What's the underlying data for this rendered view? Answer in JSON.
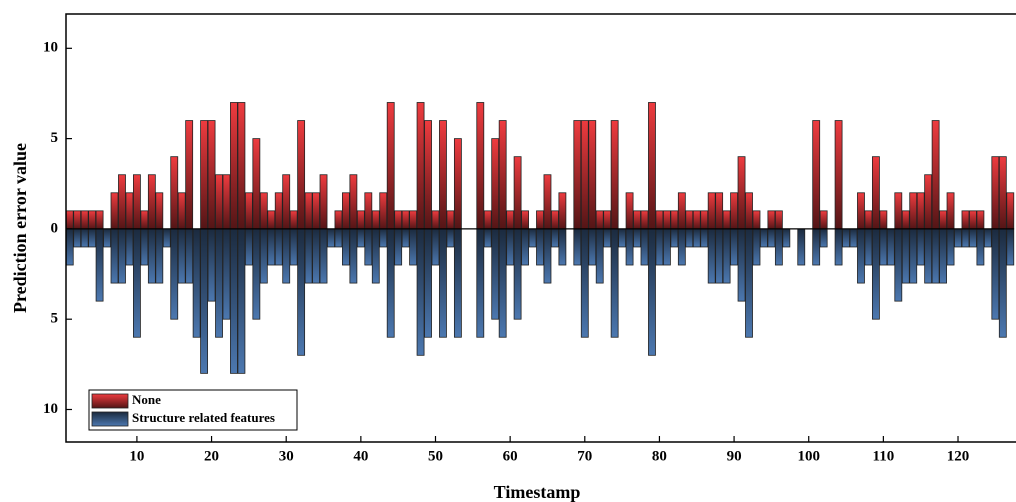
{
  "chart_data": {
    "type": "bar",
    "x_label": "Timestamp",
    "y_label": "Prediction error value",
    "x": [
      1,
      2,
      3,
      4,
      5,
      6,
      7,
      8,
      9,
      10,
      11,
      12,
      13,
      14,
      15,
      16,
      17,
      18,
      19,
      20,
      21,
      22,
      23,
      24,
      25,
      26,
      27,
      28,
      29,
      30,
      31,
      32,
      33,
      34,
      35,
      36,
      37,
      38,
      39,
      40,
      41,
      42,
      43,
      44,
      45,
      46,
      47,
      48,
      49,
      50,
      51,
      52,
      53,
      54,
      55,
      56,
      57,
      58,
      59,
      60,
      61,
      62,
      63,
      64,
      65,
      66,
      67,
      68,
      69,
      70,
      71,
      72,
      73,
      74,
      75,
      76,
      77,
      78,
      79,
      80,
      81,
      82,
      83,
      84,
      85,
      86,
      87,
      88,
      89,
      90,
      91,
      92,
      93,
      94,
      95,
      96,
      97,
      98,
      99,
      100,
      101,
      102,
      103,
      104,
      105,
      106,
      107,
      108,
      109,
      110,
      111,
      112,
      113,
      114,
      115,
      116,
      117,
      118,
      119,
      120,
      121,
      122,
      123,
      124,
      125,
      126,
      127
    ],
    "series": [
      {
        "name": "None",
        "color": "#ee3b3f",
        "values": [
          1,
          1,
          1,
          1,
          1,
          0,
          2,
          3,
          2,
          3,
          1,
          3,
          2,
          0,
          4,
          2,
          6,
          0,
          6,
          6,
          3,
          3,
          7,
          7,
          2,
          5,
          2,
          1,
          2,
          3,
          1,
          6,
          2,
          2,
          3,
          0,
          1,
          2,
          3,
          1,
          2,
          1,
          2,
          7,
          1,
          1,
          1,
          7,
          6,
          1,
          6,
          1,
          5,
          0,
          0,
          7,
          1,
          5,
          6,
          1,
          4,
          1,
          0,
          1,
          3,
          1,
          2,
          0,
          6,
          6,
          6,
          1,
          1,
          6,
          0,
          2,
          1,
          1,
          7,
          1,
          1,
          1,
          2,
          1,
          1,
          1,
          2,
          2,
          1,
          2,
          4,
          2,
          1,
          0,
          1,
          1,
          0,
          0,
          0,
          0,
          6,
          1,
          0,
          6,
          0,
          0,
          2,
          1,
          4,
          1,
          0,
          2,
          1,
          2,
          2,
          3,
          6,
          1,
          2,
          0,
          1,
          1,
          1,
          0,
          4,
          4,
          2
        ]
      },
      {
        "name": "Structure related features",
        "color": "#4c78b0",
        "values": [
          -2,
          -1,
          -1,
          -1,
          -4,
          -1,
          -3,
          -3,
          -2,
          -6,
          -2,
          -3,
          -3,
          -1,
          -5,
          -3,
          -3,
          -6,
          -8,
          -4,
          -6,
          -5,
          -8,
          -8,
          -2,
          -5,
          -3,
          -2,
          -2,
          -3,
          -2,
          -7,
          -3,
          -3,
          -3,
          -1,
          -1,
          -2,
          -3,
          -1,
          -2,
          -3,
          -1,
          -6,
          -2,
          -1,
          -2,
          -7,
          -6,
          -2,
          -6,
          -1,
          -6,
          0,
          0,
          -6,
          -1,
          -5,
          -6,
          -2,
          -5,
          -2,
          -1,
          -2,
          -3,
          -1,
          -2,
          0,
          -2,
          -6,
          -2,
          -3,
          -1,
          -6,
          -1,
          -2,
          -1,
          -2,
          -7,
          -2,
          -2,
          -1,
          -2,
          -1,
          -1,
          -1,
          -3,
          -3,
          -3,
          -2,
          -4,
          -6,
          -2,
          -1,
          -1,
          -2,
          -1,
          0,
          -2,
          0,
          -2,
          -1,
          0,
          -2,
          -1,
          -1,
          -3,
          -2,
          -5,
          -2,
          -2,
          -4,
          -3,
          -3,
          -2,
          -3,
          -3,
          -3,
          -2,
          -1,
          -1,
          -1,
          -2,
          -1,
          -5,
          -6,
          -2
        ]
      }
    ],
    "xlim": [
      0.5,
      127.5
    ],
    "xticks": [
      10,
      20,
      30,
      40,
      50,
      60,
      70,
      80,
      90,
      100,
      110,
      120
    ],
    "ylim": [
      -11.8,
      11.9
    ],
    "yticks": [
      {
        "value": -10,
        "label": "10"
      },
      {
        "value": -5,
        "label": "5"
      },
      0,
      5,
      10
    ]
  }
}
